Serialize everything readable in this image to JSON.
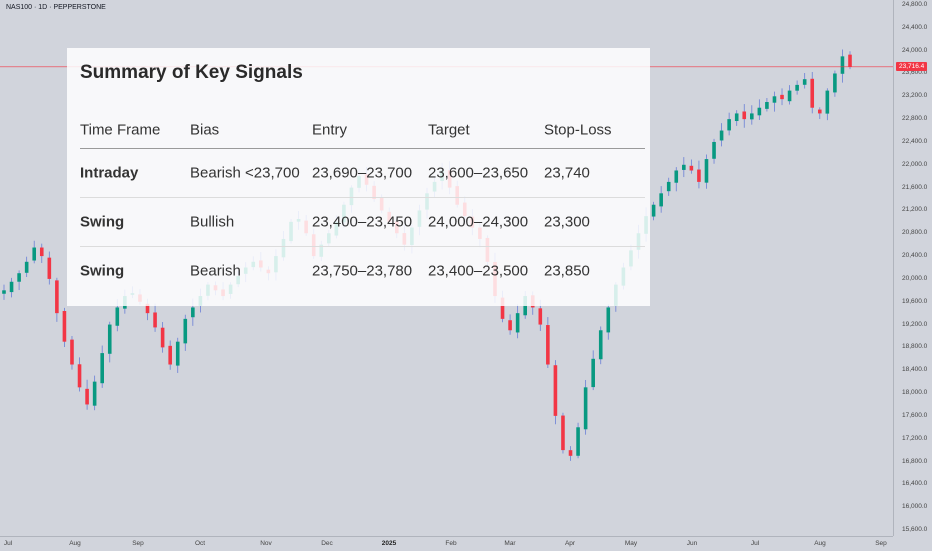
{
  "symbol": "NAS100 · 1D · PEPPERSTONE",
  "price_axis": [
    "24,800.0",
    "24,400.0",
    "24,000.0",
    "23,600.0",
    "23,200.0",
    "22,800.0",
    "22,400.0",
    "22,000.0",
    "21,600.0",
    "21,200.0",
    "20,800.0",
    "20,400.0",
    "20,000.0",
    "19,600.0",
    "19,200.0",
    "18,800.0",
    "18,400.0",
    "18,000.0",
    "17,600.0",
    "17,200.0",
    "16,800.0",
    "16,400.0",
    "16,000.0",
    "15,600.0"
  ],
  "current_price": "23,716.4",
  "time_axis": [
    "Jul",
    "Aug",
    "Sep",
    "Oct",
    "Nov",
    "Dec",
    "2025",
    "Feb",
    "Mar",
    "Apr",
    "May",
    "Jun",
    "Jul",
    "Aug",
    "Sep"
  ],
  "summary": {
    "title": "Summary of Key Signals",
    "headers": [
      "Time Frame",
      "Bias",
      "Entry",
      "Target",
      "Stop-Loss"
    ],
    "rows": [
      [
        "Intraday",
        "Bearish <23,700",
        "23,690–23,700",
        "23,600–23,650",
        "23,740"
      ],
      [
        "Swing",
        "Bullish",
        "23,400–23,450",
        "24,000–24,300",
        "23,300"
      ],
      [
        "Swing",
        "Bearish",
        "23,750–23,780",
        "23,400–23,500",
        "23,850"
      ]
    ]
  },
  "colors": {
    "up": "#089981",
    "down": "#f23645",
    "background": "#d1d4dc"
  },
  "chart_data": {
    "type": "candlestick",
    "y_range": [
      15600,
      24800
    ],
    "x_ticks": [
      "Jul",
      "Aug",
      "Sep",
      "Oct",
      "Nov",
      "Dec",
      "2025",
      "Feb",
      "Mar",
      "Apr",
      "May",
      "Jun",
      "Jul",
      "Aug",
      "Sep"
    ],
    "closes": [
      19800,
      19950,
      20100,
      20300,
      20550,
      20400,
      20000,
      19400,
      18900,
      18500,
      18100,
      17800,
      18200,
      18700,
      19200,
      19500,
      19700,
      19750,
      19600,
      19400,
      19150,
      18800,
      18500,
      18900,
      19300,
      19500,
      19700,
      19900,
      19800,
      19700,
      19900,
      20050,
      20200,
      20300,
      20200,
      20100,
      20400,
      20700,
      21000,
      21050,
      20800,
      20400,
      20600,
      20800,
      21000,
      21300,
      21600,
      21800,
      21650,
      21400,
      21200,
      21000,
      20800,
      20600,
      20900,
      21200,
      21500,
      21700,
      21900,
      21600,
      21300,
      21100,
      20900,
      20700,
      20300,
      19700,
      19300,
      19100,
      19400,
      19700,
      19500,
      19200,
      18500,
      17600,
      17000,
      16900,
      17400,
      18100,
      18600,
      19100,
      19500,
      19900,
      20200,
      20500,
      20800,
      21100,
      21300,
      21500,
      21700,
      21900,
      22000,
      21900,
      21700,
      22100,
      22400,
      22600,
      22800,
      22900,
      22800,
      22900,
      23000,
      23100,
      23200,
      23150,
      23300,
      23400,
      23500,
      23000,
      22900,
      23300,
      23600,
      23900,
      23716.4
    ],
    "last_price": 23716.4
  }
}
